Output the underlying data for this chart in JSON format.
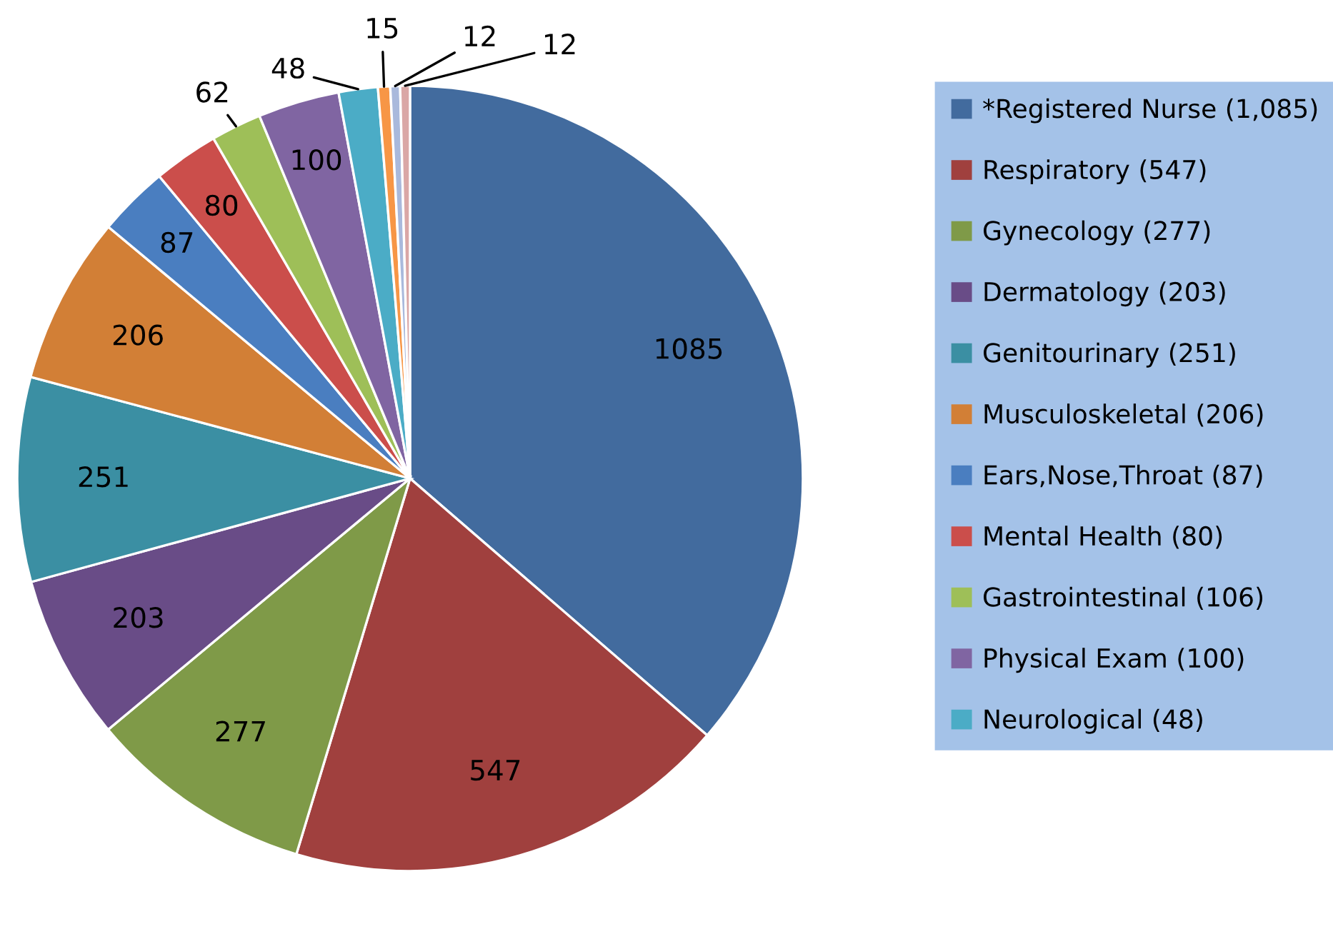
{
  "chart_data": {
    "type": "pie",
    "categories": [
      "*Registered Nurse (1,085)",
      "Respiratory (547)",
      "Gynecology (277)",
      "Dermatology (203)",
      "Genitourinary (251)",
      "Musculoskeletal (206)",
      "Ears,Nose,Throat (87)",
      "Mental Health (80)",
      "Gastrointestinal (106)",
      "Physical Exam (100)",
      "Neurological (48)",
      null,
      null,
      null
    ],
    "values": [
      1085,
      547,
      277,
      203,
      251,
      206,
      87,
      80,
      62,
      100,
      48,
      15,
      12,
      12
    ],
    "colors": [
      "#426b9e",
      "#a0403e",
      "#7f9a48",
      "#694c87",
      "#3b8fa3",
      "#d27f36",
      "#4a7ec0",
      "#cb4e4b",
      "#9ebf58",
      "#8065a2",
      "#4bacc6",
      "#f79646",
      "#a9b9dc",
      "#daa7a6"
    ],
    "data_labels": true,
    "legend": "right"
  }
}
